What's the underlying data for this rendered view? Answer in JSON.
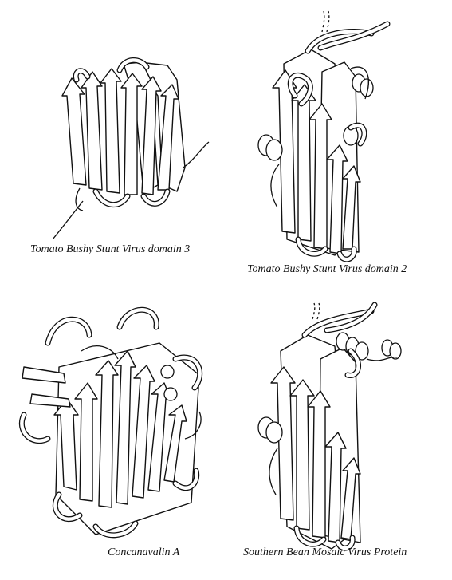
{
  "figure": {
    "panels": [
      {
        "id": "tbsv-domain-3",
        "caption": "Tomato Bushy Stunt Virus domain 3"
      },
      {
        "id": "tbsv-domain-2",
        "caption": "Tomato Bushy Stunt Virus domain 2"
      },
      {
        "id": "concanavalin-a",
        "caption": "Concanavalin A"
      },
      {
        "id": "sbmv-protein",
        "caption": "Southern Bean Mosaic Virus Protein"
      }
    ],
    "icons": {
      "strand": "beta-strand-arrow-icon",
      "helix": "alpha-helix-icon"
    }
  }
}
